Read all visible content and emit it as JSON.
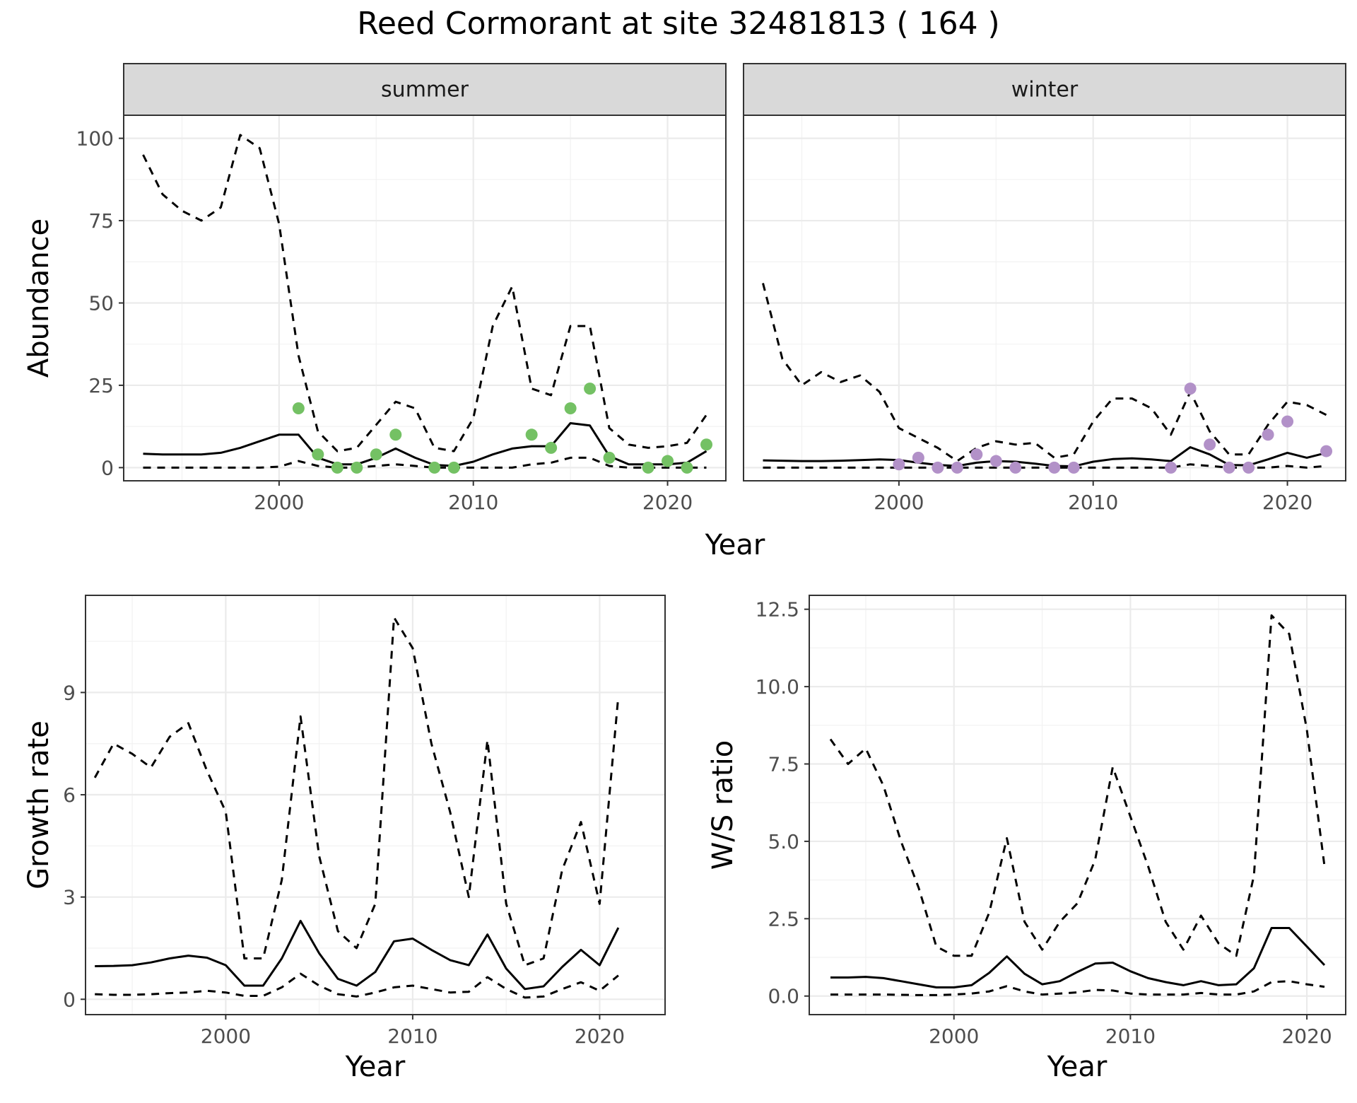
{
  "title": "Reed Cormorant at site 32481813 ( 164 )",
  "chart_data": [
    {
      "type": "line",
      "panel": "summer",
      "strip_label": "summer",
      "xlabel": "Year",
      "ylabel": "Abundance",
      "xlim": [
        1992,
        2023
      ],
      "ylim": [
        -4,
        107
      ],
      "x_ticks": [
        2000,
        2010,
        2020
      ],
      "y_ticks": [
        0,
        25,
        50,
        75,
        100
      ],
      "point_color": "#74c164",
      "series": [
        {
          "role": "mean",
          "style": "solid",
          "x": [
            1993,
            1994,
            1995,
            1996,
            1997,
            1998,
            1999,
            2000,
            2001,
            2002,
            2003,
            2004,
            2005,
            2006,
            2007,
            2008,
            2009,
            2010,
            2011,
            2012,
            2013,
            2014,
            2015,
            2016,
            2017,
            2018,
            2019,
            2020,
            2021,
            2022
          ],
          "y": [
            4.2,
            4.0,
            4.0,
            4.0,
            4.5,
            6.0,
            8.0,
            10.0,
            10.0,
            3.0,
            1.0,
            1.0,
            3.0,
            5.8,
            3.0,
            0.8,
            0.5,
            1.8,
            4.0,
            5.8,
            6.5,
            6.5,
            13.5,
            12.8,
            3.5,
            1.0,
            1.0,
            1.0,
            1.5,
            5.0
          ]
        },
        {
          "role": "upper",
          "style": "dashed",
          "x": [
            1993,
            1994,
            1995,
            1996,
            1997,
            1998,
            1999,
            2000,
            2001,
            2002,
            2003,
            2004,
            2005,
            2006,
            2007,
            2008,
            2009,
            2010,
            2011,
            2012,
            2013,
            2014,
            2015,
            2016,
            2017,
            2018,
            2019,
            2020,
            2021,
            2022
          ],
          "y": [
            95,
            83,
            78,
            75,
            79,
            101,
            97,
            74,
            34,
            11,
            5,
            6,
            13,
            20,
            18,
            6,
            5,
            15,
            43,
            55,
            24,
            22,
            43,
            43,
            12,
            7,
            6,
            6.5,
            7.5,
            16
          ]
        },
        {
          "role": "lower",
          "style": "dashed",
          "x": [
            1993,
            1994,
            1995,
            1996,
            1997,
            1998,
            1999,
            2000,
            2001,
            2002,
            2003,
            2004,
            2005,
            2006,
            2007,
            2008,
            2009,
            2010,
            2011,
            2012,
            2013,
            2014,
            2015,
            2016,
            2017,
            2018,
            2019,
            2020,
            2021,
            2022
          ],
          "y": [
            0,
            0,
            0,
            0,
            0,
            0,
            0,
            0.3,
            2,
            0.5,
            0,
            0,
            0.5,
            1,
            0.5,
            0,
            0,
            0,
            0,
            0,
            1,
            1.5,
            3,
            3,
            0.5,
            0,
            0,
            0,
            0,
            0
          ]
        }
      ],
      "points": {
        "x": [
          2001,
          2002,
          2003,
          2004,
          2005,
          2006,
          2008,
          2009,
          2013,
          2014,
          2015,
          2016,
          2017,
          2019,
          2020,
          2021,
          2022
        ],
        "y": [
          18,
          4,
          0,
          0,
          4,
          10,
          0,
          0,
          10,
          6,
          18,
          24,
          3,
          0,
          2,
          0,
          7
        ]
      }
    },
    {
      "type": "line",
      "panel": "winter",
      "strip_label": "winter",
      "xlabel": "Year",
      "ylabel": "Abundance",
      "xlim": [
        1992,
        2023
      ],
      "ylim": [
        -4,
        107
      ],
      "x_ticks": [
        2000,
        2010,
        2020
      ],
      "y_ticks": [
        0,
        25,
        50,
        75,
        100
      ],
      "point_color": "#b291c8",
      "series": [
        {
          "role": "mean",
          "style": "solid",
          "x": [
            1993,
            1994,
            1995,
            1996,
            1997,
            1998,
            1999,
            2000,
            2001,
            2002,
            2003,
            2004,
            2005,
            2006,
            2007,
            2008,
            2009,
            2010,
            2011,
            2012,
            2013,
            2014,
            2015,
            2016,
            2017,
            2018,
            2019,
            2020,
            2021,
            2022
          ],
          "y": [
            2.2,
            2.1,
            2.0,
            2.0,
            2.1,
            2.3,
            2.5,
            2.3,
            1.5,
            0.8,
            0.5,
            1.5,
            2.0,
            1.8,
            1.2,
            0.5,
            0.4,
            1.8,
            2.6,
            2.8,
            2.5,
            2.0,
            6.2,
            4.0,
            0.8,
            0.7,
            2.5,
            4.5,
            3.0,
            4.5
          ]
        },
        {
          "role": "upper",
          "style": "dashed",
          "x": [
            1993,
            1994,
            1995,
            1996,
            1997,
            1998,
            1999,
            2000,
            2001,
            2002,
            2003,
            2004,
            2005,
            2006,
            2007,
            2008,
            2009,
            2010,
            2011,
            2012,
            2013,
            2014,
            2015,
            2016,
            2017,
            2018,
            2019,
            2020,
            2021,
            2022
          ],
          "y": [
            56,
            33,
            25,
            29,
            26,
            28,
            23,
            12,
            9,
            6,
            2,
            6,
            8,
            7,
            7.5,
            3,
            4,
            14,
            21,
            21,
            18,
            10,
            23,
            11,
            4,
            4,
            13,
            20,
            19,
            16
          ]
        },
        {
          "role": "lower",
          "style": "dashed",
          "x": [
            1993,
            1994,
            1995,
            1996,
            1997,
            1998,
            1999,
            2000,
            2001,
            2002,
            2003,
            2004,
            2005,
            2006,
            2007,
            2008,
            2009,
            2010,
            2011,
            2012,
            2013,
            2014,
            2015,
            2016,
            2017,
            2018,
            2019,
            2020,
            2021,
            2022
          ],
          "y": [
            0,
            0,
            0,
            0,
            0,
            0,
            0,
            0,
            0,
            0,
            0,
            0,
            0,
            0,
            0,
            0,
            0,
            0,
            0,
            0,
            0,
            0,
            1,
            0.5,
            0,
            0,
            0,
            0.5,
            0,
            0.5
          ]
        }
      ],
      "points": {
        "x": [
          2000,
          2001,
          2002,
          2003,
          2004,
          2005,
          2006,
          2008,
          2009,
          2014,
          2015,
          2016,
          2017,
          2018,
          2019,
          2020,
          2022
        ],
        "y": [
          1,
          3,
          0,
          0,
          4,
          2,
          0,
          0,
          0,
          0,
          24,
          7,
          0,
          0,
          10,
          14,
          5
        ]
      }
    },
    {
      "type": "line",
      "panel": "growth",
      "xlabel": "Year",
      "ylabel": "Growth rate",
      "xlim": [
        1992.5,
        2023.5
      ],
      "ylim": [
        -0.45,
        11.85
      ],
      "x_ticks": [
        2000,
        2010,
        2020
      ],
      "y_ticks": [
        0,
        3,
        6,
        9
      ],
      "series": [
        {
          "role": "mean",
          "style": "solid",
          "x": [
            1993,
            1994,
            1995,
            1996,
            1997,
            1998,
            1999,
            2000,
            2001,
            2002,
            2003,
            2004,
            2005,
            2006,
            2007,
            2008,
            2009,
            2010,
            2011,
            2012,
            2013,
            2014,
            2015,
            2016,
            2017,
            2018,
            2019,
            2020,
            2021
          ],
          "y": [
            0.97,
            0.98,
            1.0,
            1.08,
            1.2,
            1.28,
            1.22,
            1.0,
            0.4,
            0.4,
            1.2,
            2.3,
            1.35,
            0.6,
            0.4,
            0.8,
            1.7,
            1.78,
            1.45,
            1.15,
            1.0,
            1.9,
            0.9,
            0.3,
            0.38,
            0.95,
            1.45,
            1.0,
            2.1
          ]
        },
        {
          "role": "upper",
          "style": "dashed",
          "x": [
            1993,
            1994,
            1995,
            1996,
            1997,
            1998,
            1999,
            2000,
            2001,
            2002,
            2003,
            2004,
            2005,
            2006,
            2007,
            2008,
            2009,
            2010,
            2011,
            2012,
            2013,
            2014,
            2015,
            2016,
            2017,
            2018,
            2019,
            2020,
            2021
          ],
          "y": [
            6.5,
            7.5,
            7.2,
            6.8,
            7.7,
            8.1,
            6.7,
            5.5,
            1.2,
            1.2,
            3.5,
            8.3,
            4.2,
            2.0,
            1.5,
            2.8,
            11.2,
            10.3,
            7.5,
            5.5,
            3.0,
            7.6,
            2.8,
            1.0,
            1.2,
            3.8,
            5.2,
            2.8,
            8.9
          ]
        },
        {
          "role": "lower",
          "style": "dashed",
          "x": [
            1993,
            1994,
            1995,
            1996,
            1997,
            1998,
            1999,
            2000,
            2001,
            2002,
            2003,
            2004,
            2005,
            2006,
            2007,
            2008,
            2009,
            2010,
            2011,
            2012,
            2013,
            2014,
            2015,
            2016,
            2017,
            2018,
            2019,
            2020,
            2021
          ],
          "y": [
            0.15,
            0.13,
            0.13,
            0.15,
            0.18,
            0.2,
            0.25,
            0.2,
            0.1,
            0.1,
            0.35,
            0.75,
            0.4,
            0.15,
            0.08,
            0.2,
            0.35,
            0.4,
            0.3,
            0.2,
            0.22,
            0.65,
            0.3,
            0.05,
            0.08,
            0.3,
            0.5,
            0.25,
            0.7
          ]
        }
      ]
    },
    {
      "type": "line",
      "panel": "ratio",
      "xlabel": "Year",
      "ylabel": "W/S ratio",
      "xlim": [
        1991.8,
        2022.2
      ],
      "ylim": [
        -0.6,
        12.95
      ],
      "x_ticks": [
        2000,
        2010,
        2020
      ],
      "y_ticks": [
        0.0,
        2.5,
        5.0,
        7.5,
        10.0,
        12.5
      ],
      "y_tick_labels": [
        "0.0",
        "2.5",
        "5.0",
        "7.5",
        "10.0",
        "12.5"
      ],
      "series": [
        {
          "role": "mean",
          "style": "solid",
          "x": [
            1993,
            1994,
            1995,
            1996,
            1997,
            1998,
            1999,
            2000,
            2001,
            2002,
            2003,
            2004,
            2005,
            2006,
            2007,
            2008,
            2009,
            2010,
            2011,
            2012,
            2013,
            2014,
            2015,
            2016,
            2017,
            2018,
            2019,
            2020,
            2021
          ],
          "y": [
            0.6,
            0.6,
            0.62,
            0.58,
            0.48,
            0.38,
            0.28,
            0.28,
            0.35,
            0.75,
            1.28,
            0.72,
            0.38,
            0.48,
            0.78,
            1.05,
            1.08,
            0.8,
            0.58,
            0.45,
            0.35,
            0.48,
            0.35,
            0.38,
            0.9,
            2.2,
            2.2,
            1.6,
            1.0
          ]
        },
        {
          "role": "upper",
          "style": "dashed",
          "x": [
            1993,
            1994,
            1995,
            1996,
            1997,
            1998,
            1999,
            2000,
            2001,
            2002,
            2003,
            2004,
            2005,
            2006,
            2007,
            2008,
            2009,
            2010,
            2011,
            2012,
            2013,
            2014,
            2015,
            2016,
            2017,
            2018,
            2019,
            2020,
            2021
          ],
          "y": [
            8.3,
            7.5,
            8.0,
            6.8,
            5.0,
            3.5,
            1.6,
            1.3,
            1.3,
            2.7,
            5.1,
            2.4,
            1.5,
            2.4,
            3.0,
            4.4,
            7.4,
            5.8,
            4.2,
            2.4,
            1.5,
            2.6,
            1.7,
            1.3,
            3.9,
            12.3,
            11.7,
            8.6,
            4.2
          ]
        },
        {
          "role": "lower",
          "style": "dashed",
          "x": [
            1993,
            1994,
            1995,
            1996,
            1997,
            1998,
            1999,
            2000,
            2001,
            2002,
            2003,
            2004,
            2005,
            2006,
            2007,
            2008,
            2009,
            2010,
            2011,
            2012,
            2013,
            2014,
            2015,
            2016,
            2017,
            2018,
            2019,
            2020,
            2021
          ],
          "y": [
            0.05,
            0.05,
            0.05,
            0.05,
            0.04,
            0.03,
            0.03,
            0.05,
            0.08,
            0.15,
            0.32,
            0.15,
            0.05,
            0.08,
            0.12,
            0.2,
            0.18,
            0.08,
            0.05,
            0.05,
            0.05,
            0.1,
            0.05,
            0.05,
            0.15,
            0.45,
            0.48,
            0.38,
            0.3
          ]
        }
      ]
    }
  ]
}
